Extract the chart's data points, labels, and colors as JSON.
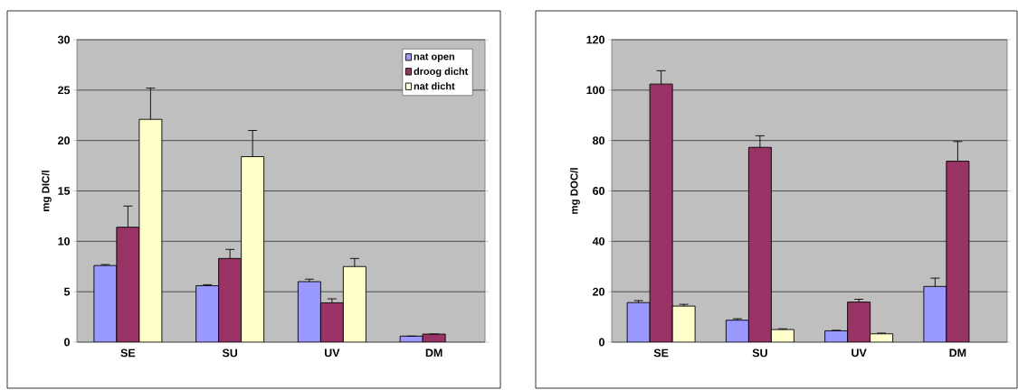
{
  "chart_data": [
    {
      "type": "bar",
      "ylabel": "mg DIC/l",
      "categories": [
        "SE",
        "SU",
        "UV",
        "DM"
      ],
      "ylim": [
        0,
        30
      ],
      "yticks": [
        0,
        5,
        10,
        15,
        20,
        25,
        30
      ],
      "grid": "y",
      "legend": "top right",
      "series": [
        {
          "name": "nat open",
          "color": "#9999ff",
          "values": [
            7.6,
            5.6,
            6.0,
            0.6
          ],
          "errors": [
            [
              7.6,
              7.7
            ],
            [
              5.6,
              5.7
            ],
            [
              6.0,
              6.25
            ],
            null
          ]
        },
        {
          "name": "droog dicht",
          "color": "#993366",
          "values": [
            11.4,
            8.3,
            3.9,
            0.8
          ],
          "errors": [
            [
              11.4,
              13.5
            ],
            [
              8.3,
              9.2
            ],
            [
              3.9,
              4.3
            ],
            null
          ]
        },
        {
          "name": "nat dicht",
          "color": "#ffffcc",
          "values": [
            22.1,
            18.4,
            7.5,
            null
          ],
          "errors": [
            [
              22.1,
              25.2
            ],
            [
              18.4,
              21.0
            ],
            [
              7.5,
              8.3
            ],
            null
          ]
        }
      ]
    },
    {
      "type": "bar",
      "ylabel": "mg DOC/l",
      "categories": [
        "SE",
        "SU",
        "UV",
        "DM"
      ],
      "ylim": [
        0,
        120
      ],
      "yticks": [
        0,
        20,
        40,
        60,
        80,
        100,
        120
      ],
      "grid": "y",
      "series": [
        {
          "color": "#9999ff",
          "values": [
            15.7,
            8.7,
            4.5,
            22.1
          ],
          "errors": [
            [
              15.7,
              16.5
            ],
            [
              8.7,
              9.3
            ],
            [
              4.5,
              4.7
            ],
            [
              22.1,
              25.4
            ]
          ]
        },
        {
          "color": "#993366",
          "values": [
            102.4,
            77.3,
            15.9,
            71.8
          ],
          "errors": [
            [
              102.4,
              107.7
            ],
            [
              77.3,
              81.9
            ],
            [
              15.9,
              17.0
            ],
            [
              71.8,
              79.6
            ]
          ]
        },
        {
          "color": "#ffffcc",
          "values": [
            14.3,
            5.0,
            3.3,
            null
          ],
          "errors": [
            [
              14.3,
              15.0
            ],
            [
              5.0,
              5.3
            ],
            [
              3.3,
              3.6
            ],
            null
          ]
        }
      ]
    }
  ]
}
